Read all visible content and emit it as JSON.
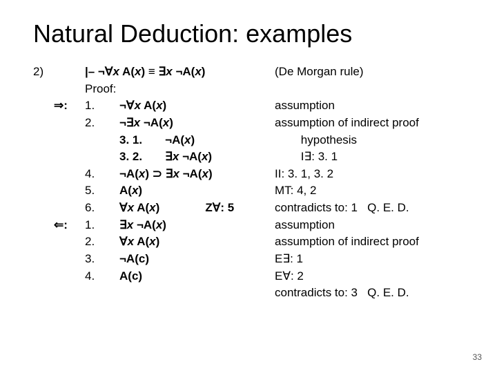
{
  "title": "Natural Deduction: examples",
  "pageNumber": "33",
  "header": {
    "marker": "2)",
    "theorem_lhs": "|– ¬∀",
    "theorem_var1": "x",
    "theorem_mid": " A(",
    "theorem_var2": "x",
    "theorem_eq": ") ≡ ∃",
    "theorem_var3": "x",
    "theorem_rhs": " ¬A(",
    "theorem_var4": "x",
    "theorem_end": ")",
    "rule": "(De Morgan rule)"
  },
  "proofLabel": "Proof:",
  "dirRight": "⇒:",
  "dirLeft": "⇐:",
  "lines": [
    {
      "dir": "right",
      "step": "1.",
      "f": [
        "¬∀",
        {
          "i": "x"
        },
        " A(",
        {
          "i": "x"
        },
        ")"
      ],
      "just": "assumption"
    },
    {
      "dir": "",
      "step": "2.",
      "f": [
        "¬∃",
        {
          "i": "x"
        },
        " ¬A(",
        {
          "i": "x"
        },
        ")"
      ],
      "just": "assumption of indirect proof"
    },
    {
      "dir": "",
      "step": "",
      "f": [
        "3. 1.       ¬A(",
        {
          "i": "x"
        },
        ")"
      ],
      "just": "        hypothesis"
    },
    {
      "dir": "",
      "step": "",
      "f": [
        "3. 2.       ∃",
        {
          "i": "x"
        },
        " ¬A(",
        {
          "i": "x"
        },
        ")"
      ],
      "just": "        I∃: 3. 1"
    },
    {
      "dir": "",
      "step": "4.",
      "f": [
        "¬A(",
        {
          "i": "x"
        },
        ") ⊃ ∃",
        {
          "i": "x"
        },
        " ¬A(",
        {
          "i": "x"
        },
        ")"
      ],
      "just": "II: 3. 1, 3. 2"
    },
    {
      "dir": "",
      "step": "5.",
      "f": [
        "A(",
        {
          "i": "x"
        },
        ")"
      ],
      "just": "MT: 4, 2"
    },
    {
      "dir": "",
      "step": "6.",
      "f": [
        "∀",
        {
          "i": "x"
        },
        " A(",
        {
          "i": "x"
        },
        ")              Z∀: 5"
      ],
      "just": "contradicts to: 1   Q. E. D."
    },
    {
      "dir": "left",
      "step": "1.",
      "f": [
        "∃",
        {
          "i": "x"
        },
        " ¬A(",
        {
          "i": "x"
        },
        ")"
      ],
      "just": "assumption"
    },
    {
      "dir": "",
      "step": "2.",
      "f": [
        "∀",
        {
          "i": "x"
        },
        " A(",
        {
          "i": "x"
        },
        ")"
      ],
      "just": "assumption of indirect proof"
    },
    {
      "dir": "",
      "step": "3.",
      "f": [
        "¬A(c)"
      ],
      "just": "E∃: 1"
    },
    {
      "dir": "",
      "step": "4.",
      "f": [
        "A(c)"
      ],
      "just": "E∀: 2"
    },
    {
      "dir": "",
      "step": "",
      "f": [
        ""
      ],
      "just": "contradicts to: 3   Q. E. D."
    }
  ]
}
